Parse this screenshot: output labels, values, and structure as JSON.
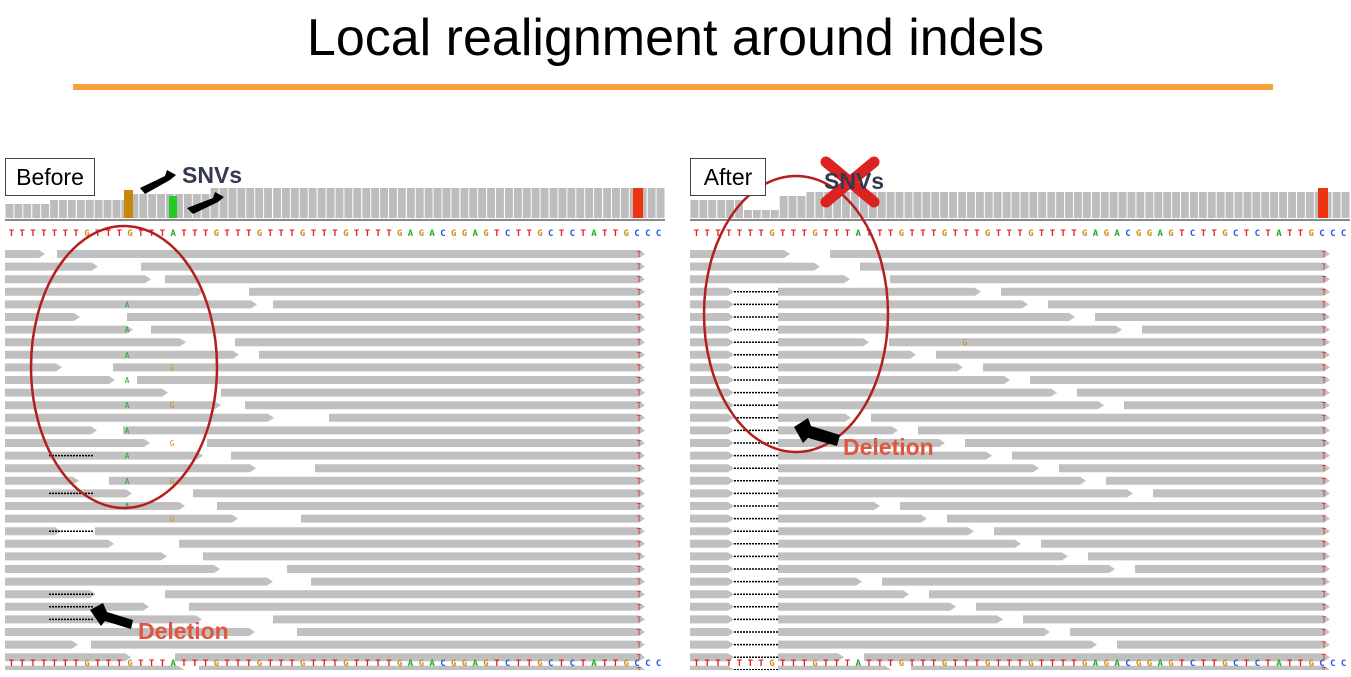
{
  "title": "Local realignment around indels",
  "colors": {
    "accent_rule": "#f7a13a",
    "read": "#c0c0c0",
    "coverage": "#bdbdbd",
    "ellipse": "#b41e1e",
    "deletion_label": "#e0563e",
    "snv_label": "#333a50",
    "base_A": "#22aa22",
    "base_C": "#2255dd",
    "base_G": "#d08a1a",
    "base_T": "#dd2222",
    "cross": "#dd2222"
  },
  "reference_sequence": "TTTTTTTGTTTGTTTATTTGTTTGTTTGTTTGTTTTGAGACGGAGTCTTGCTCTATTGCCC",
  "panels": {
    "before": {
      "label": "Before",
      "annotation_snv": "SNVs",
      "annotation_deletion": "Deletion"
    },
    "after": {
      "label": "After",
      "annotation_snv": "SNVs",
      "annotation_deletion": "Deletion"
    }
  }
}
